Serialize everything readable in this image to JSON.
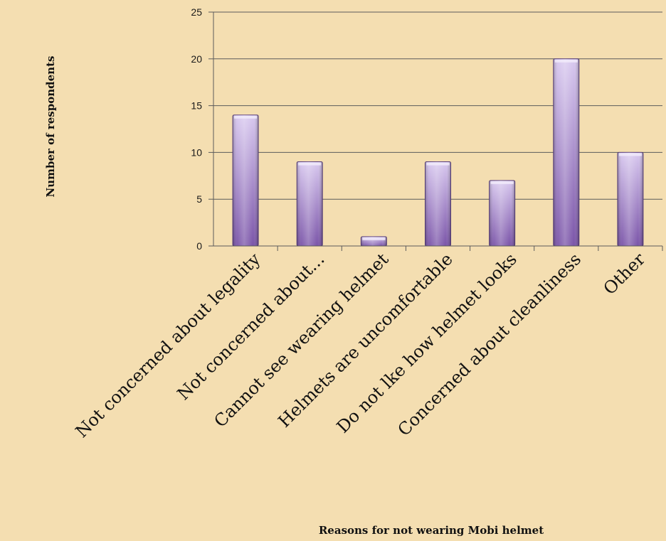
{
  "chart_data": {
    "type": "bar",
    "xlabel": "Reasons for not wearing Mobi helmet",
    "ylabel": "Number of respondents",
    "ylim": [
      0,
      25
    ],
    "yticks": [
      0,
      5,
      10,
      15,
      20,
      25
    ],
    "grid": true,
    "categories": [
      "Not concerned about legality",
      "Not concerned about...",
      "Cannot see wearing helmet",
      "Helmets are uncomfortable",
      "Do not lke how helmet looks",
      "Concerned about cleanliness",
      "Other"
    ],
    "values": [
      14,
      9,
      1,
      9,
      7,
      20,
      10
    ],
    "colors": {
      "background": "#f4deb1",
      "bar_light": "#d8c8ef",
      "bar_dark": "#7a54a8",
      "bar_edge": "#5a3f80",
      "grid": "#5b5b5b"
    }
  }
}
